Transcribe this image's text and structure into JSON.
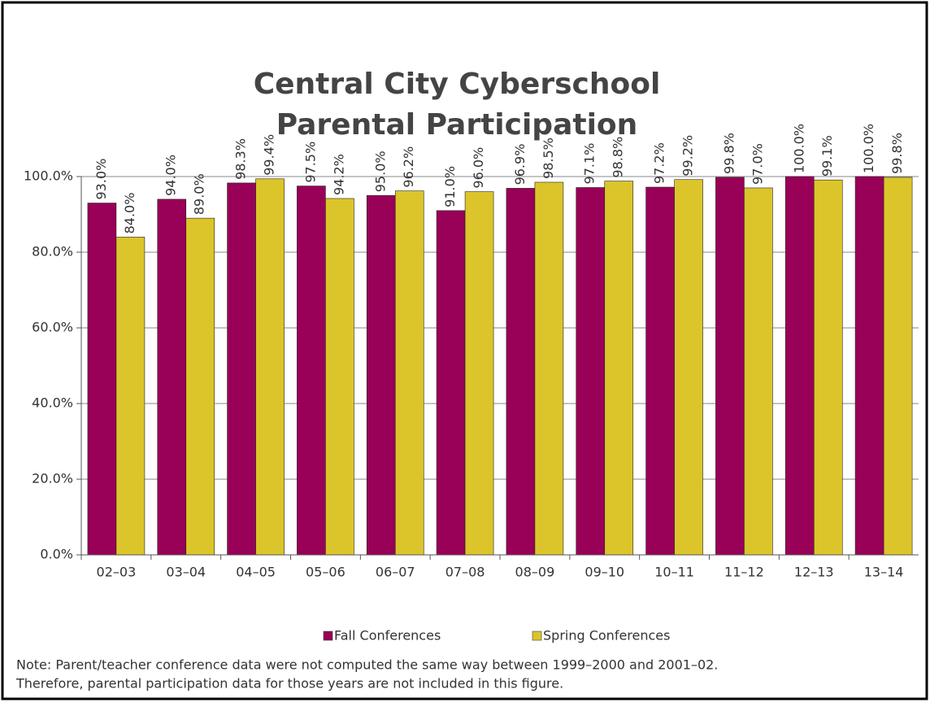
{
  "chart_data": {
    "type": "bar",
    "title_lines": [
      "Central City Cyberschool",
      "Parental Participation"
    ],
    "categories": [
      "02–03",
      "03–04",
      "04–05",
      "05–06",
      "06–07",
      "07–08",
      "08–09",
      "09–10",
      "10–11",
      "11–12",
      "12–13",
      "13–14"
    ],
    "series": [
      {
        "name": "Fall Conferences",
        "color": "#990057",
        "values": [
          93.0,
          94.0,
          98.3,
          97.5,
          95.0,
          91.0,
          96.9,
          97.1,
          97.2,
          99.8,
          100.0,
          100.0
        ],
        "value_labels": [
          "93.0%",
          "94.0%",
          "98.3%",
          "97.5%",
          "95.0%",
          "91.0%",
          "96.9%",
          "97.1%",
          "97.2%",
          "99.8%",
          "100.0%",
          "100.0%"
        ]
      },
      {
        "name": "Spring Conferences",
        "color": "#DCC52B",
        "values": [
          84.0,
          89.0,
          99.4,
          94.2,
          96.2,
          96.0,
          98.5,
          98.8,
          99.2,
          97.0,
          99.1,
          99.8
        ],
        "value_labels": [
          "84.0%",
          "89.0%",
          "99.4%",
          "94.2%",
          "96.2%",
          "96.0%",
          "98.5%",
          "98.8%",
          "99.2%",
          "97.0%",
          "99.1%",
          "99.8%"
        ]
      }
    ],
    "ylim": [
      0,
      100
    ],
    "yticks": [
      {
        "value": 0,
        "label": "0.0%"
      },
      {
        "value": 20,
        "label": "20.0%"
      },
      {
        "value": 40,
        "label": "40.0%"
      },
      {
        "value": 60,
        "label": "60.0%"
      },
      {
        "value": 80,
        "label": "80.0%"
      },
      {
        "value": 100,
        "label": "100.0%"
      }
    ],
    "grid": true,
    "legend": "bottom",
    "note_lines": [
      "Note: Parent/teacher conference data were not computed the same way between 1999–2000 and 2001–02.",
      "Therefore, parental participation data for those years are not included in this figure."
    ]
  }
}
